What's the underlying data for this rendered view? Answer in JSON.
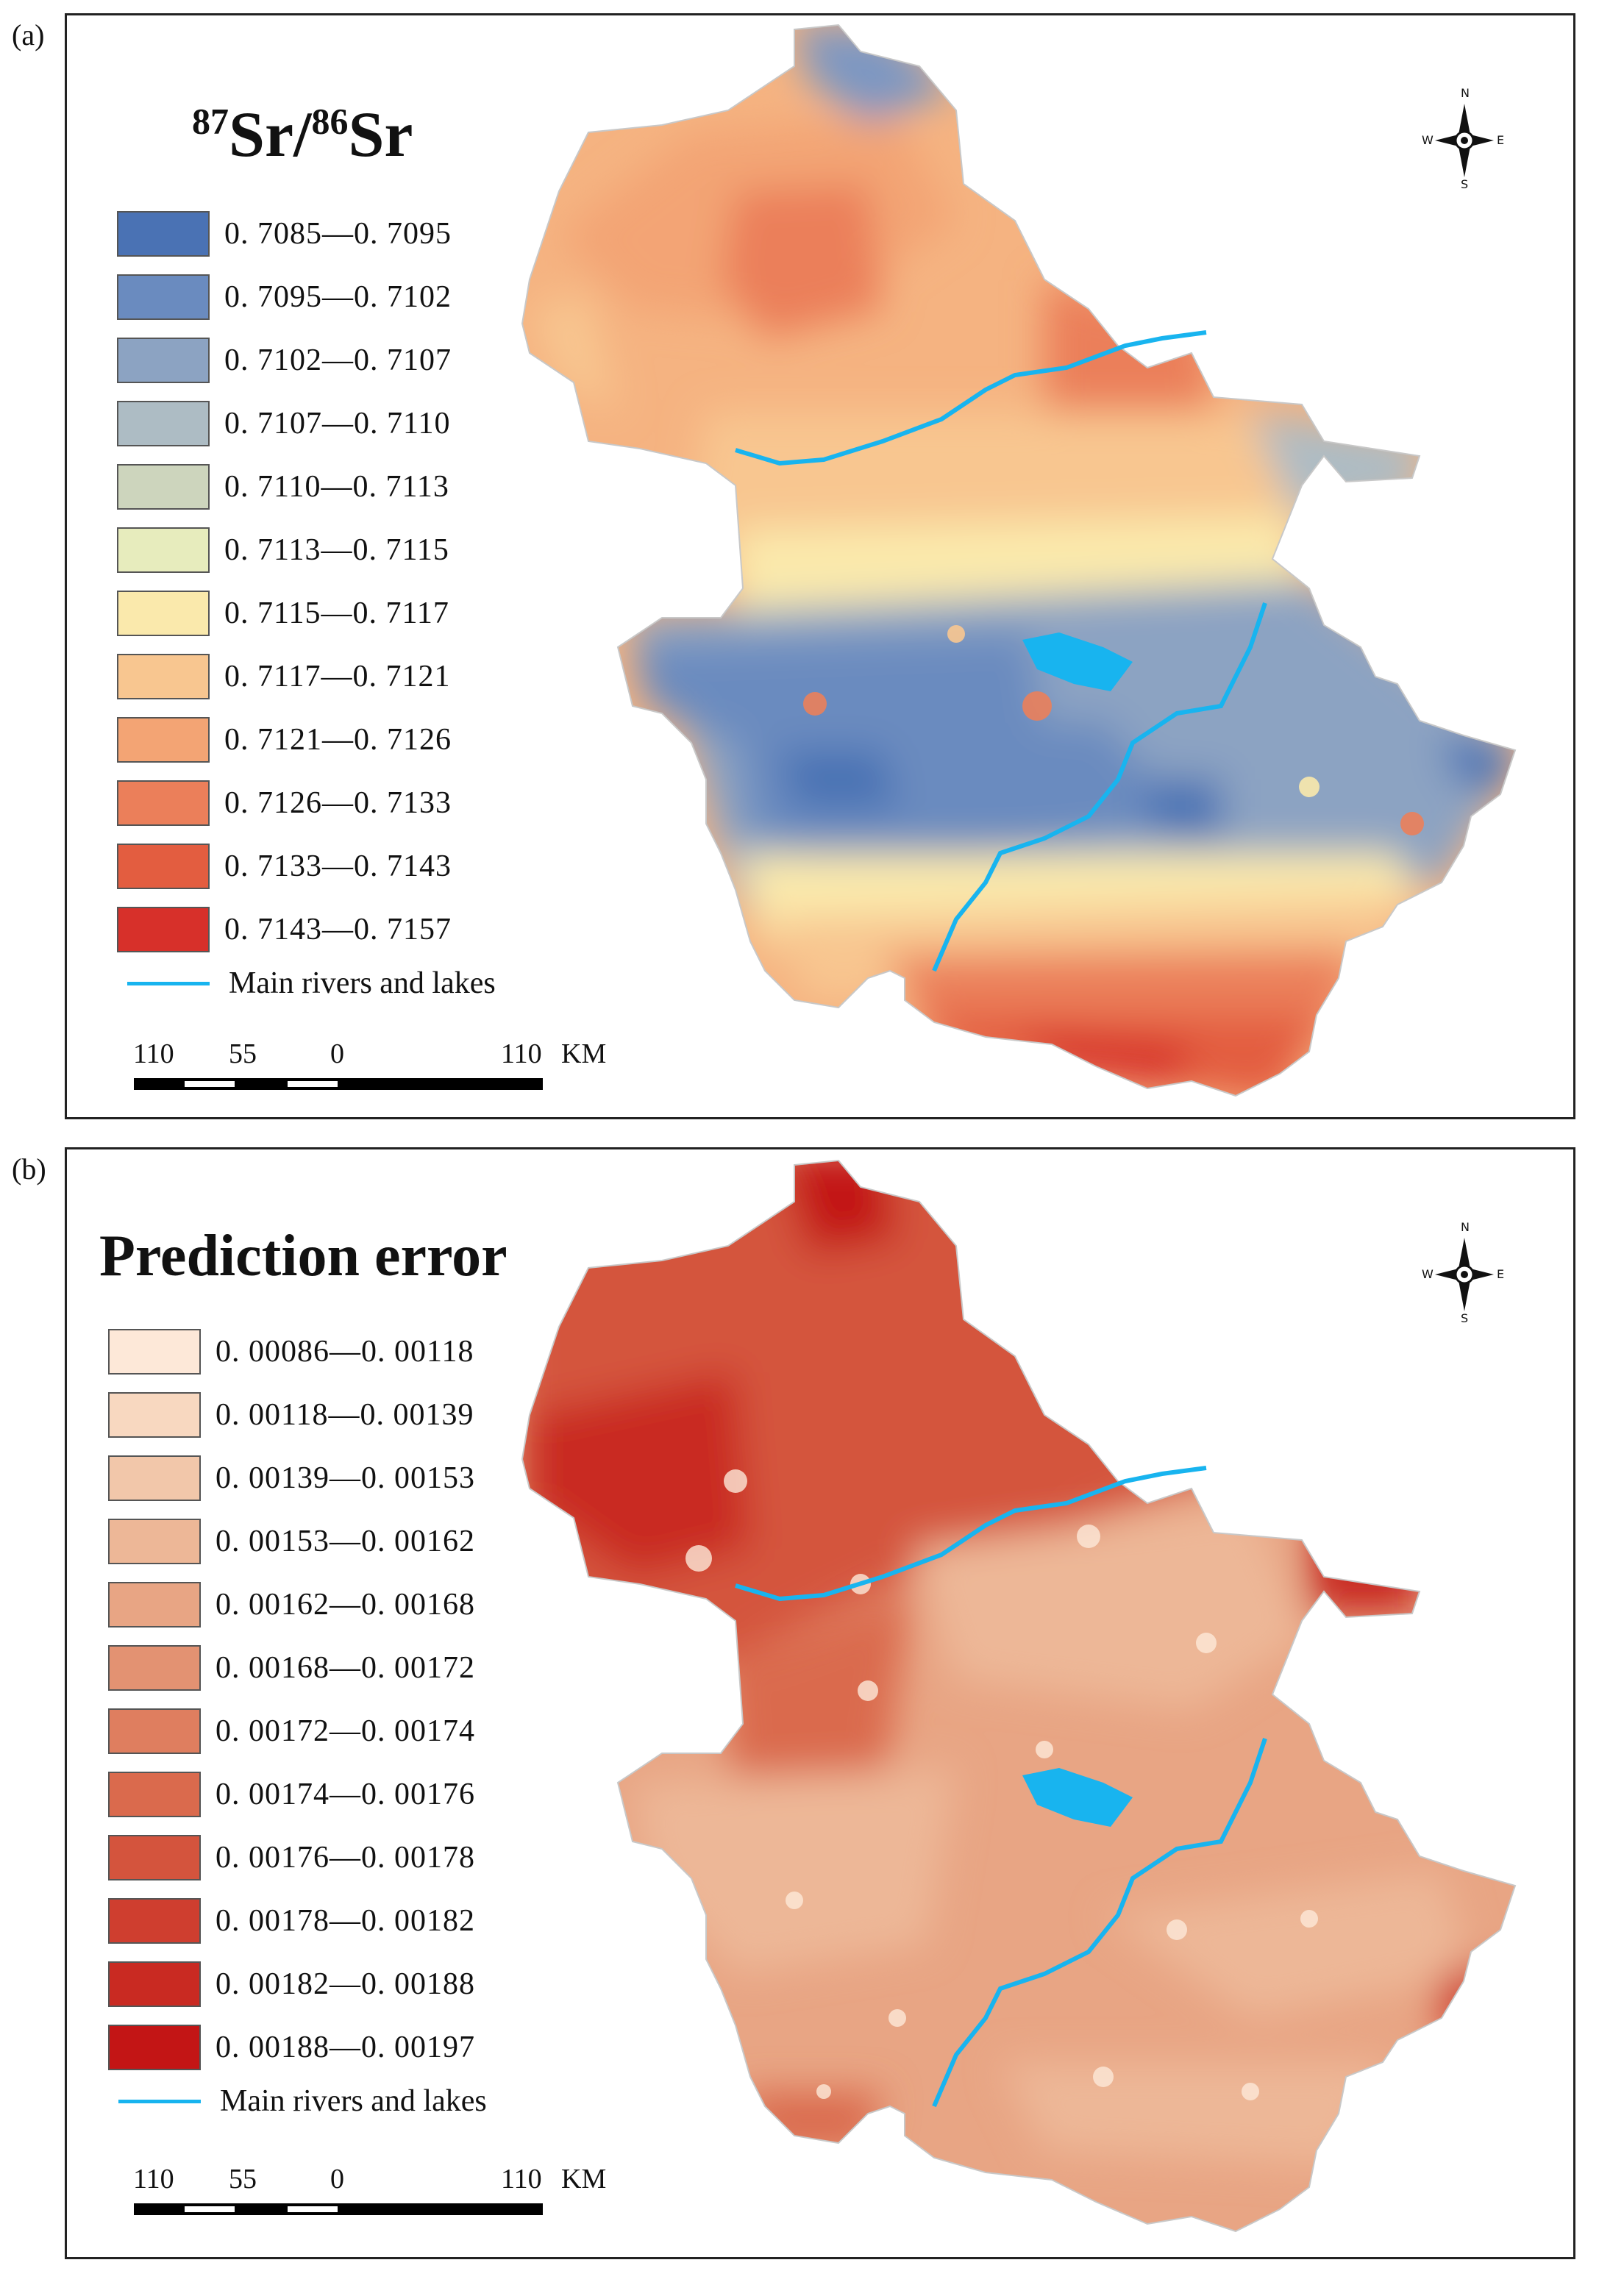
{
  "panel_a": {
    "label": "(a)",
    "title_parts": {
      "sup1": "87",
      "t1": "Sr/",
      "sup2": "86",
      "t2": "Sr"
    },
    "legend": [
      {
        "label": "0. 7085—0. 7095",
        "color": "#4a72b4"
      },
      {
        "label": "0. 7095—0. 7102",
        "color": "#6a8bbf"
      },
      {
        "label": "0. 7102—0. 7107",
        "color": "#8ca3c2"
      },
      {
        "label": "0. 7107—0. 7110",
        "color": "#adbcc4"
      },
      {
        "label": "0. 7110—0. 7113",
        "color": "#cdd5bd"
      },
      {
        "label": "0. 7113—0. 7115",
        "color": "#e7ecbd"
      },
      {
        "label": "0. 7115—0. 7117",
        "color": "#fae9ac"
      },
      {
        "label": "0. 7117—0. 7121",
        "color": "#f8c690"
      },
      {
        "label": "0. 7121—0. 7126",
        "color": "#f3a474"
      },
      {
        "label": "0. 7126—0. 7133",
        "color": "#eb7f5a"
      },
      {
        "label": "0. 7133—0. 7143",
        "color": "#e35d40"
      },
      {
        "label": "0. 7143—0. 7157",
        "color": "#d7302a"
      }
    ],
    "river_label": "Main rivers and lakes",
    "scale": {
      "l1": "110",
      "l2": "55",
      "l3": "0",
      "l4": "110",
      "unit": "KM"
    },
    "compass": {
      "n": "N",
      "s": "S",
      "e": "E",
      "w": "W"
    }
  },
  "panel_b": {
    "label": "(b)",
    "title": "Prediction error",
    "legend": [
      {
        "label": "0. 00086—0. 00118",
        "color": "#fde8d8"
      },
      {
        "label": "0. 00118—0. 00139",
        "color": "#f8d8c0"
      },
      {
        "label": "0. 00139—0. 00153",
        "color": "#f2c7aa"
      },
      {
        "label": "0. 00153—0. 00162",
        "color": "#edb797"
      },
      {
        "label": "0. 00162—0. 00168",
        "color": "#e8a584"
      },
      {
        "label": "0. 00168—0. 00172",
        "color": "#e39272"
      },
      {
        "label": "0. 00172—0. 00174",
        "color": "#df7e5f"
      },
      {
        "label": "0. 00174—0. 00176",
        "color": "#da6a4d"
      },
      {
        "label": "0. 00176—0. 00178",
        "color": "#d4543d"
      },
      {
        "label": "0. 00178—0. 00182",
        "color": "#cf3e2f"
      },
      {
        "label": "0. 00182—0. 00188",
        "color": "#c92a22"
      },
      {
        "label": "0. 00188—0. 00197",
        "color": "#c31515"
      }
    ],
    "river_label": "Main rivers and lakes",
    "scale": {
      "l1": "110",
      "l2": "55",
      "l3": "0",
      "l4": "110",
      "unit": "KM"
    },
    "compass": {
      "n": "N",
      "s": "S",
      "e": "E",
      "w": "W"
    }
  },
  "river_color": "#18b4ef"
}
